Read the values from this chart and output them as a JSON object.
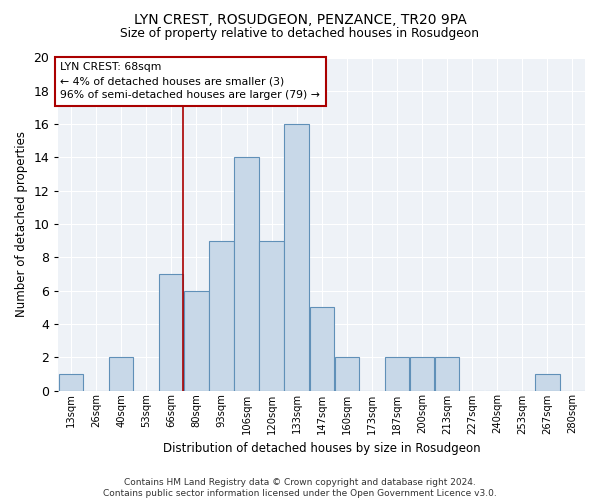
{
  "title1": "LYN CREST, ROSUDGEON, PENZANCE, TR20 9PA",
  "title2": "Size of property relative to detached houses in Rosudgeon",
  "xlabel": "Distribution of detached houses by size in Rosudgeon",
  "ylabel": "Number of detached properties",
  "labels": [
    "13sqm",
    "26sqm",
    "40sqm",
    "53sqm",
    "66sqm",
    "80sqm",
    "93sqm",
    "106sqm",
    "120sqm",
    "133sqm",
    "147sqm",
    "160sqm",
    "173sqm",
    "187sqm",
    "200sqm",
    "213sqm",
    "227sqm",
    "240sqm",
    "253sqm",
    "267sqm",
    "280sqm"
  ],
  "counts": [
    1,
    0,
    2,
    0,
    7,
    6,
    9,
    14,
    9,
    16,
    5,
    2,
    0,
    2,
    2,
    2,
    0,
    0,
    0,
    1,
    0
  ],
  "bar_color": "#c8d8e8",
  "bar_edge_color": "#6090b8",
  "bg_color": "#eef2f7",
  "grid_color": "#ffffff",
  "property_bar_index": 4,
  "annotation_text": "LYN CREST: 68sqm\n← 4% of detached houses are smaller (3)\n96% of semi-detached houses are larger (79) →",
  "annotation_box_color": "#aa0000",
  "ylim": [
    0,
    20
  ],
  "yticks": [
    0,
    2,
    4,
    6,
    8,
    10,
    12,
    14,
    16,
    18,
    20
  ],
  "footer_text": "Contains HM Land Registry data © Crown copyright and database right 2024.\nContains public sector information licensed under the Open Government Licence v3.0."
}
